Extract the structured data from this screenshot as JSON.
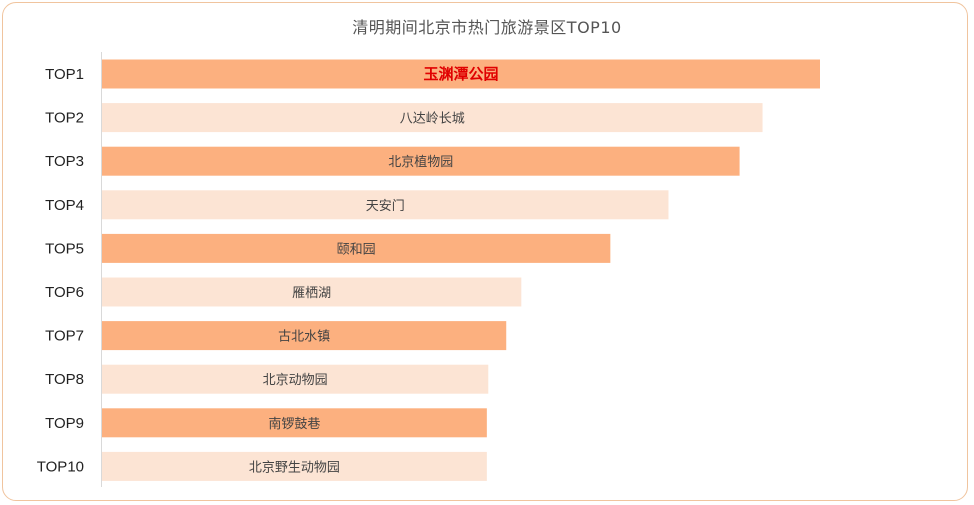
{
  "chart_data": {
    "type": "bar",
    "orientation": "horizontal",
    "title": "清明期间北京市热门旅游景区TOP10",
    "categories": [
      "TOP1",
      "TOP2",
      "TOP3",
      "TOP4",
      "TOP5",
      "TOP6",
      "TOP7",
      "TOP8",
      "TOP9",
      "TOP10"
    ],
    "labels": [
      "玉渊潭公园",
      "八达岭长城",
      "北京植物园",
      "天安门",
      "颐和园",
      "雁栖湖",
      "古北水镇",
      "北京动物园",
      "南锣鼓巷",
      "北京野生动物园"
    ],
    "values": [
      100,
      92,
      88.8,
      78.9,
      70.8,
      58.4,
      56.3,
      53.8,
      53.6,
      53.6
    ],
    "xlim": [
      0,
      100
    ],
    "highlight_index": 0,
    "colors": {
      "dark": "#fcb07f",
      "light": "#fce4d4",
      "highlight_text": "#e00000"
    },
    "axis_values_shown": false,
    "grid": false,
    "legend": "none"
  }
}
